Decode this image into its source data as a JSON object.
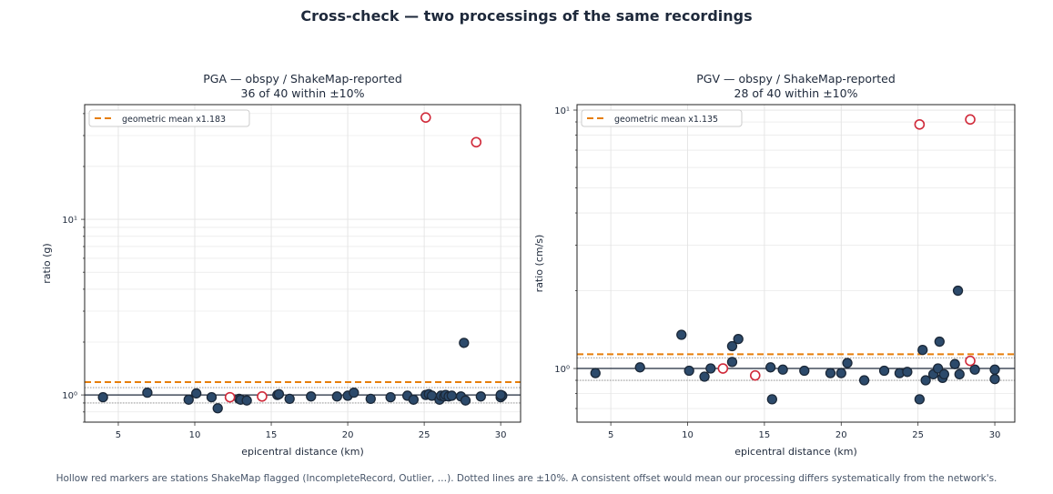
{
  "suptitle": "Cross-check — two processings of the same recordings",
  "footer": "Hollow red markers are stations ShakeMap flagged (IncompleteRecord, Outlier, …).   Dotted lines are ±10%.   A consistent offset would mean our processing differs systematically from the network's.",
  "colors": {
    "point_fill": "#2c4a6b",
    "point_edge": "#1b2838",
    "flagged": "#d02a3a",
    "mean_line": "#e67e0a",
    "reference_line": "#1e293b",
    "band_line": "#888888",
    "grid": "#e3e3e3"
  },
  "chart_data": [
    {
      "type": "scatter",
      "title_line1": "PGA — obspy / ShakeMap-reported",
      "title_line2": "36 of 40 within ±10%",
      "xlabel": "epicentral distance (km)",
      "ylabel": "ratio (g)",
      "xlim": [
        2.8,
        31.3
      ],
      "ylim": [
        0.7,
        45
      ],
      "yscale": "log",
      "xticks": [
        5,
        10,
        15,
        20,
        25,
        30
      ],
      "yticks": [
        1,
        10
      ],
      "ytick_labels": [
        "10⁰",
        "10¹"
      ],
      "legend": {
        "label": "geometric mean x1.183",
        "placement": "top-left"
      },
      "mean": 1.183,
      "reference": 1.0,
      "band": [
        0.9,
        1.1
      ],
      "points": [
        [
          4.0,
          0.97
        ],
        [
          6.9,
          1.03
        ],
        [
          9.6,
          0.94
        ],
        [
          10.1,
          1.02
        ],
        [
          11.1,
          0.97
        ],
        [
          11.5,
          0.84
        ],
        [
          12.9,
          0.95
        ],
        [
          13.0,
          0.94
        ],
        [
          13.4,
          0.93
        ],
        [
          15.4,
          1.0
        ],
        [
          15.5,
          1.01
        ],
        [
          16.2,
          0.95
        ],
        [
          17.6,
          0.98
        ],
        [
          19.3,
          0.98
        ],
        [
          20.0,
          0.99
        ],
        [
          20.4,
          1.03
        ],
        [
          21.5,
          0.95
        ],
        [
          22.8,
          0.97
        ],
        [
          23.9,
          0.99
        ],
        [
          24.3,
          0.94
        ],
        [
          25.1,
          1.0
        ],
        [
          25.3,
          1.01
        ],
        [
          25.5,
          0.99
        ],
        [
          26.0,
          0.94
        ],
        [
          26.1,
          0.99
        ],
        [
          26.3,
          0.98
        ],
        [
          26.4,
          1.0
        ],
        [
          26.6,
          0.98
        ],
        [
          26.8,
          0.99
        ],
        [
          27.4,
          0.98
        ],
        [
          27.6,
          1.98
        ],
        [
          27.7,
          0.93
        ],
        [
          28.7,
          0.98
        ],
        [
          30.0,
          0.97
        ],
        [
          30.1,
          0.99
        ],
        [
          30.0,
          1.0
        ]
      ],
      "flagged": [
        [
          12.3,
          0.97
        ],
        [
          14.4,
          0.98
        ],
        [
          25.1,
          38.0
        ],
        [
          28.4,
          27.5
        ]
      ]
    },
    {
      "type": "scatter",
      "title_line1": "PGV — obspy / ShakeMap-reported",
      "title_line2": "28 of 40 within ±10%",
      "xlabel": "epicentral distance (km)",
      "ylabel": "ratio (cm/s)",
      "xlim": [
        2.8,
        31.3
      ],
      "ylim": [
        0.62,
        10.5
      ],
      "yscale": "log",
      "xticks": [
        5,
        10,
        15,
        20,
        25,
        30
      ],
      "yticks": [
        1,
        10
      ],
      "ytick_labels": [
        "10⁰",
        "10¹"
      ],
      "legend": {
        "label": "geometric mean x1.135",
        "placement": "top-left"
      },
      "mean": 1.135,
      "reference": 1.0,
      "band": [
        0.9,
        1.1
      ],
      "points": [
        [
          4.0,
          0.96
        ],
        [
          6.9,
          1.01
        ],
        [
          9.6,
          1.35
        ],
        [
          10.1,
          0.98
        ],
        [
          11.1,
          0.93
        ],
        [
          11.5,
          1.0
        ],
        [
          12.9,
          1.06
        ],
        [
          12.9,
          1.22
        ],
        [
          13.3,
          1.3
        ],
        [
          15.4,
          1.01
        ],
        [
          15.5,
          0.76
        ],
        [
          16.2,
          0.99
        ],
        [
          17.6,
          0.98
        ],
        [
          19.3,
          0.96
        ],
        [
          20.0,
          0.96
        ],
        [
          20.4,
          1.05
        ],
        [
          21.5,
          0.9
        ],
        [
          22.8,
          0.98
        ],
        [
          23.8,
          0.96
        ],
        [
          24.3,
          0.97
        ],
        [
          25.1,
          0.76
        ],
        [
          25.3,
          1.18
        ],
        [
          25.5,
          0.9
        ],
        [
          26.0,
          0.95
        ],
        [
          26.3,
          1.0
        ],
        [
          26.4,
          1.27
        ],
        [
          26.6,
          0.92
        ],
        [
          26.7,
          0.95
        ],
        [
          27.4,
          1.04
        ],
        [
          27.6,
          2.0
        ],
        [
          27.7,
          0.95
        ],
        [
          28.7,
          0.99
        ],
        [
          30.0,
          0.91
        ],
        [
          30.0,
          0.99
        ]
      ],
      "flagged": [
        [
          12.3,
          1.0
        ],
        [
          14.4,
          0.94
        ],
        [
          25.1,
          8.8
        ],
        [
          28.4,
          9.2
        ],
        [
          28.4,
          1.07
        ]
      ]
    }
  ]
}
